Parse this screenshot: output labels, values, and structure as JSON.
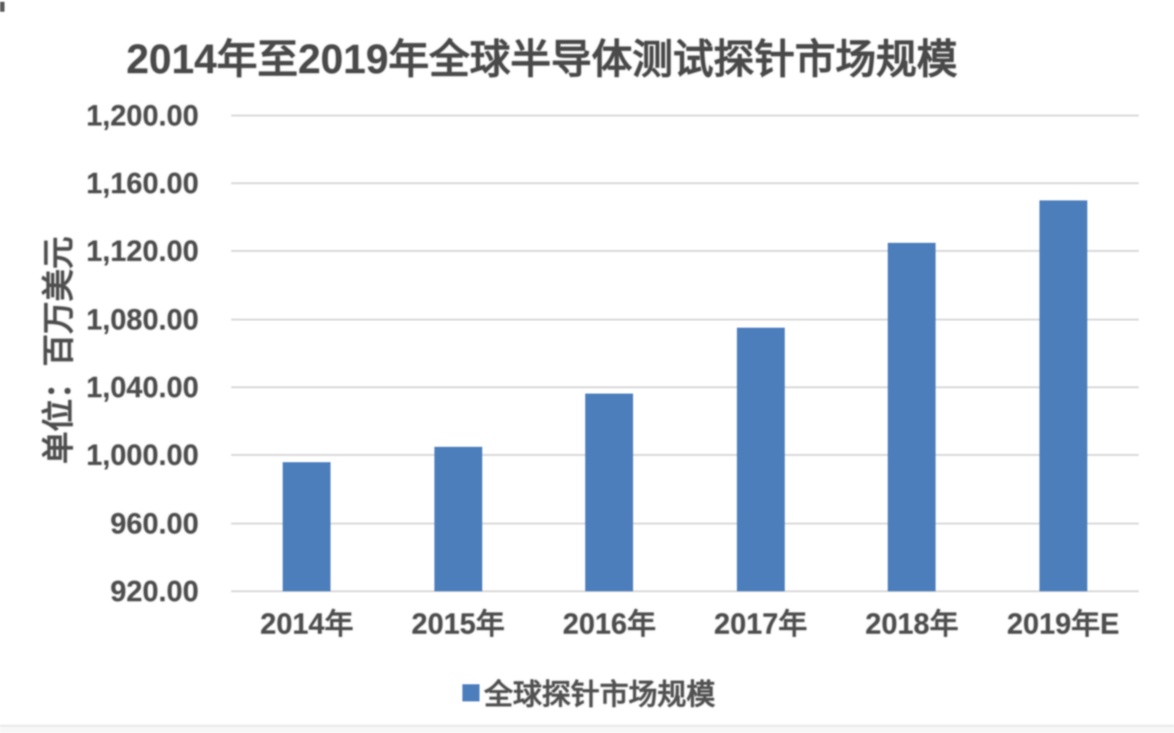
{
  "chart_data": {
    "type": "bar",
    "title": "2014年至2019年全球半导体测试探针市场规模",
    "ylabel": "单位：百万美元",
    "xlabel": "",
    "legend": [
      "全球探针市场规模"
    ],
    "legend_position": "bottom",
    "categories": [
      "2014年",
      "2015年",
      "2016年",
      "2017年",
      "2018年",
      "2019年E"
    ],
    "series": [
      {
        "name": "全球探针市场规模",
        "values": [
          996,
          1005,
          1036,
          1075,
          1125,
          1150
        ]
      }
    ],
    "ylim": [
      920,
      1200
    ],
    "ytick_interval": 40,
    "ytick_labels": [
      "920.00",
      "960.00",
      "1,000.00",
      "1,040.00",
      "1,080.00",
      "1,120.00",
      "1,160.00",
      "1,200.00"
    ],
    "grid": true,
    "bar_color": "#4d7ebc"
  }
}
